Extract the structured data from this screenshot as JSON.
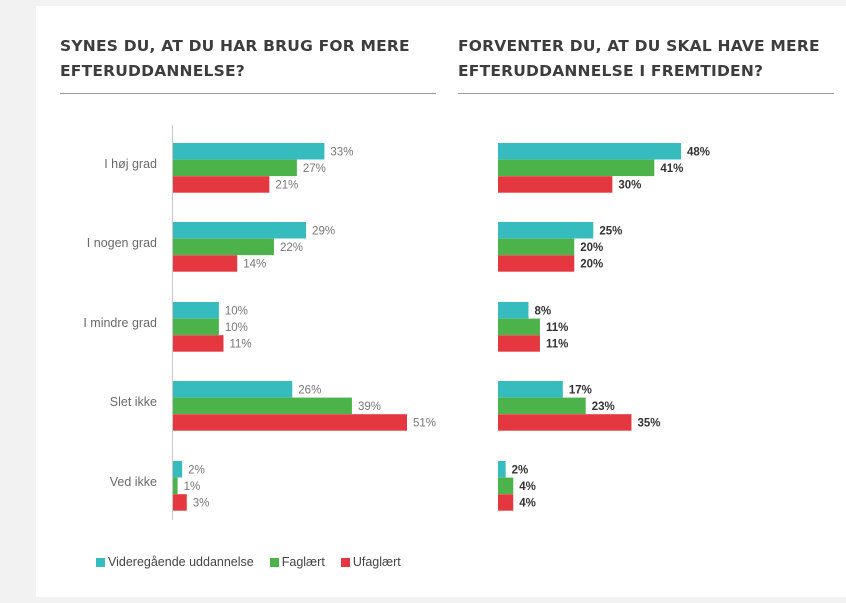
{
  "chart_data": [
    {
      "type": "bar",
      "orientation": "horizontal",
      "title": "SYNES DU, AT DU HAR BRUG FOR MERE EFTERUDDANNELSE?",
      "title_lines": [
        "SYNES DU, AT DU HAR BRUG FOR MERE",
        "EFTERUDDANNELSE?"
      ],
      "categories": [
        "I høj grad",
        "I nogen grad",
        "I mindre grad",
        "Slet ikke",
        "Ved ikke"
      ],
      "series": [
        {
          "name": "Videregående uddannelse",
          "values": [
            33,
            29,
            10,
            26,
            2
          ],
          "labels": [
            "33%",
            "29%",
            "10%",
            "26%",
            "2%"
          ]
        },
        {
          "name": "Faglært",
          "values": [
            27,
            22,
            10,
            39,
            1
          ],
          "labels": [
            "27%",
            "22%",
            "10%",
            "39%",
            "1%"
          ]
        },
        {
          "name": "Ufaglært",
          "values": [
            21,
            14,
            11,
            51,
            3
          ],
          "labels": [
            "21%",
            "14%",
            "11%",
            "51%",
            "3%"
          ]
        }
      ],
      "unit": "%",
      "xlim": [
        0,
        55
      ],
      "grid": false
    },
    {
      "type": "bar",
      "orientation": "horizontal",
      "title": "FORVENTER DU, AT DU SKAL HAVE MERE EFTERUDDANNELSE I FREMTIDEN?",
      "title_lines": [
        "FORVENTER DU, AT DU SKAL HAVE MERE",
        "EFTERUDDANNELSE I FREMTIDEN?"
      ],
      "categories": [
        "I høj grad",
        "I nogen grad",
        "I mindre grad",
        "Slet ikke",
        "Ved ikke"
      ],
      "series": [
        {
          "name": "Videregående uddannelse",
          "values": [
            48,
            25,
            8,
            17,
            2
          ],
          "labels": [
            "48%",
            "25%",
            "8%",
            "17%",
            "2%"
          ]
        },
        {
          "name": "Faglært",
          "values": [
            41,
            20,
            11,
            23,
            4
          ],
          "labels": [
            "41%",
            "20%",
            "11%",
            "23%",
            "4%"
          ]
        },
        {
          "name": "Ufaglært",
          "values": [
            30,
            20,
            11,
            35,
            4
          ],
          "labels": [
            "30%",
            "20%",
            "11%",
            "35%",
            "4%"
          ]
        }
      ],
      "unit": "%",
      "xlim": [
        0,
        55
      ],
      "grid": false
    }
  ],
  "legend": {
    "placement": "bottom-left",
    "items": [
      {
        "name": "Videregående uddannelse",
        "color": "#36bcbf"
      },
      {
        "name": "Faglært",
        "color": "#4cb34a"
      },
      {
        "name": "Ufaglært",
        "color": "#e5373f"
      }
    ]
  },
  "colors": {
    "series": [
      "#36bcbf",
      "#4cb34a",
      "#e5373f"
    ],
    "title": "#3d3d3d",
    "left_label_text": "#6a6a6a",
    "left_value_text": "#777777",
    "right_value_text": "#333333"
  }
}
